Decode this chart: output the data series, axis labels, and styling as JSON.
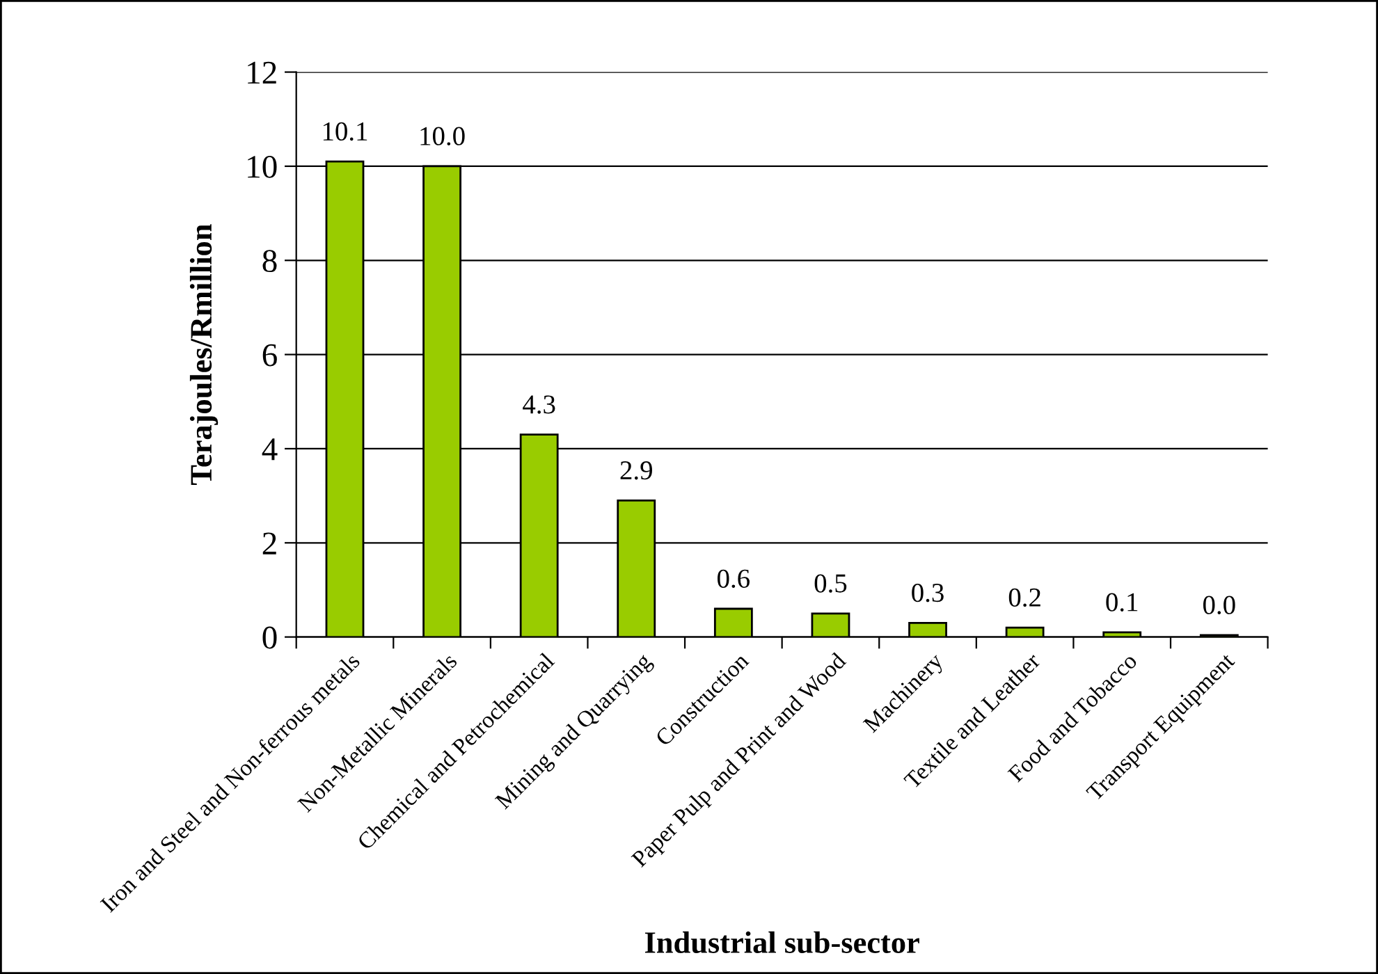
{
  "chart_data": {
    "type": "bar",
    "xlabel": "Industrial sub-sector",
    "ylabel": "Terajoules/Rmillion",
    "categories": [
      "Iron and Steel and Non-ferrous metals",
      "Non-Metallic Minerals",
      "Chemical and Petrochemical",
      "Mining and Quarrying",
      "Construction",
      "Paper Pulp and Print and Wood",
      "Machinery",
      "Textile and Leather",
      "Food and Tobacco",
      "Transport Equipment"
    ],
    "values": [
      10.1,
      10.0,
      4.3,
      2.9,
      0.6,
      0.5,
      0.3,
      0.2,
      0.1,
      0.04
    ],
    "value_labels": [
      "10.1",
      "10.0",
      "4.3",
      "2.9",
      "0.6",
      "0.5",
      "0.3",
      "0.2",
      "0.1",
      "0.0"
    ],
    "color": "#99cc00",
    "ylim": [
      0,
      12
    ],
    "yticks": [
      0,
      2,
      4,
      6,
      8,
      10,
      12
    ],
    "grid": "y"
  }
}
